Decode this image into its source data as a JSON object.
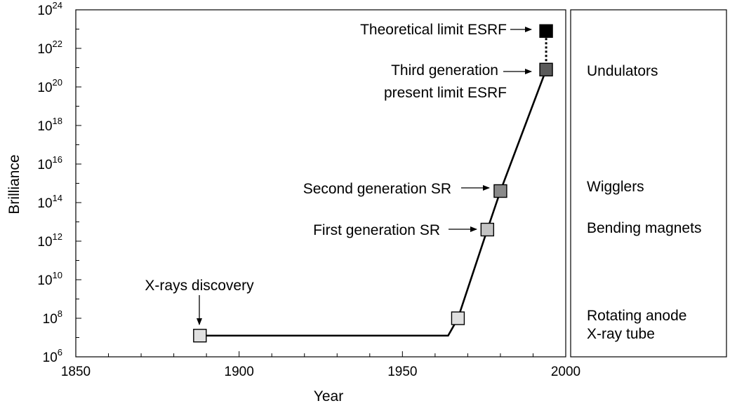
{
  "chart_data": {
    "type": "line",
    "xlabel": "Year",
    "ylabel": "Brilliance",
    "xlim": [
      1850,
      2000
    ],
    "ylim_exponent": [
      6,
      24
    ],
    "y_scale": "log10",
    "x_ticks": [
      "1850",
      "1900",
      "1950",
      "2000"
    ],
    "y_tick_base": "10",
    "y_tick_exponents": [
      "6",
      "8",
      "10",
      "12",
      "14",
      "16",
      "18",
      "20",
      "22",
      "24"
    ],
    "grid": false,
    "line": {
      "x": [
        1888,
        1964,
        1967,
        1976,
        1980,
        1994
      ],
      "y_exponent": [
        7.1,
        7.1,
        8.0,
        12.6,
        14.6,
        20.9
      ]
    },
    "dotted_segment": {
      "x": [
        1994,
        1994
      ],
      "y_exponent": [
        20.9,
        22.9
      ]
    },
    "markers": [
      {
        "x": 1888,
        "y_exponent": 7.1,
        "fill": "#e0e0e0"
      },
      {
        "x": 1967,
        "y_exponent": 8.0,
        "fill": "#e0e0e0"
      },
      {
        "x": 1976,
        "y_exponent": 12.6,
        "fill": "#c4c4c4"
      },
      {
        "x": 1980,
        "y_exponent": 14.6,
        "fill": "#8a8a8a"
      },
      {
        "x": 1994,
        "y_exponent": 20.9,
        "fill": "#5a5a5a"
      },
      {
        "x": 1994,
        "y_exponent": 22.9,
        "fill": "#000000"
      }
    ],
    "annotations": [
      {
        "lines": [
          "Theoretical limit ESRF"
        ],
        "arrow": "right"
      },
      {
        "lines": [
          "Third generation",
          "present limit ESRF"
        ],
        "arrow": "right"
      },
      {
        "lines": [
          "Second generation SR"
        ],
        "arrow": "right"
      },
      {
        "lines": [
          "First generation SR"
        ],
        "arrow": "right"
      },
      {
        "lines": [
          "X-rays discovery"
        ],
        "arrow": "down"
      }
    ],
    "side_labels": [
      [
        "Undulators"
      ],
      [
        "Wigglers"
      ],
      [
        "Bending magnets"
      ],
      [
        "Rotating anode",
        "X-ray tube"
      ]
    ]
  }
}
